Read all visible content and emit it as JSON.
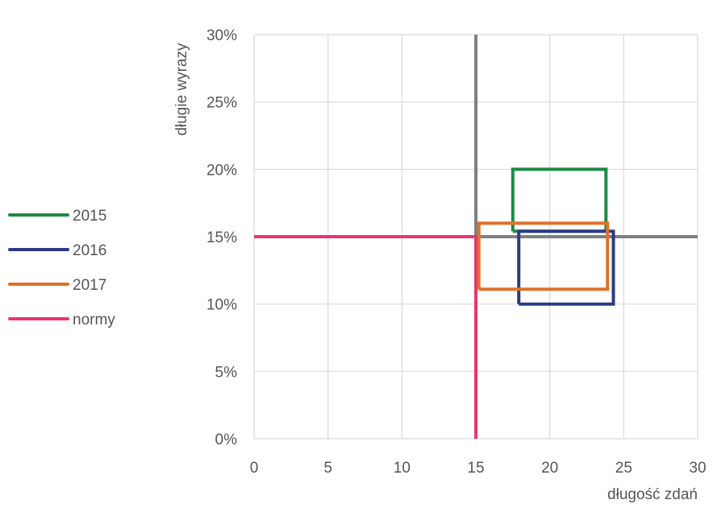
{
  "chart_data": {
    "type": "line",
    "title": "",
    "xlabel": "długość zdań",
    "ylabel": "długie wyrazy",
    "xlim": [
      0,
      30
    ],
    "ylim": [
      0,
      30
    ],
    "x_ticks": [
      0,
      5,
      10,
      15,
      20,
      25,
      30
    ],
    "x_tick_labels": [
      "0",
      "5",
      "10",
      "15",
      "20",
      "25",
      "30"
    ],
    "y_ticks": [
      0,
      5,
      10,
      15,
      20,
      25,
      30
    ],
    "y_tick_labels": [
      "0%",
      "5%",
      "10%",
      "15%",
      "20%",
      "25%",
      "30%"
    ],
    "y_unit": "%",
    "grid": true,
    "legend_position": "left",
    "reference_lines": [
      {
        "orientation": "vertical",
        "x": 15,
        "y_range": [
          15,
          30
        ],
        "color": "#7f7f7f"
      },
      {
        "orientation": "horizontal",
        "y": 15,
        "x_range": [
          15,
          30
        ],
        "color": "#7f7f7f"
      }
    ],
    "series": [
      {
        "name": "2015",
        "color": "#1e8a45",
        "points": [
          [
            17.5,
            15.4
          ],
          [
            17.5,
            20
          ],
          [
            23.8,
            20
          ],
          [
            23.8,
            15.4
          ],
          [
            17.5,
            15.4
          ]
        ]
      },
      {
        "name": "2016",
        "color": "#2e3a87",
        "points": [
          [
            17.9,
            10
          ],
          [
            17.9,
            15.4
          ],
          [
            24.3,
            15.4
          ],
          [
            24.3,
            10
          ],
          [
            17.9,
            10
          ]
        ]
      },
      {
        "name": "2017",
        "color": "#e0702a",
        "points": [
          [
            15.2,
            11.1
          ],
          [
            15.2,
            16
          ],
          [
            23.9,
            16
          ],
          [
            23.9,
            11.1
          ],
          [
            15.2,
            11.1
          ]
        ]
      },
      {
        "name": "normy",
        "color": "#e8366f",
        "points": [
          [
            0,
            15
          ],
          [
            15,
            15
          ],
          [
            15,
            0
          ]
        ]
      }
    ]
  }
}
